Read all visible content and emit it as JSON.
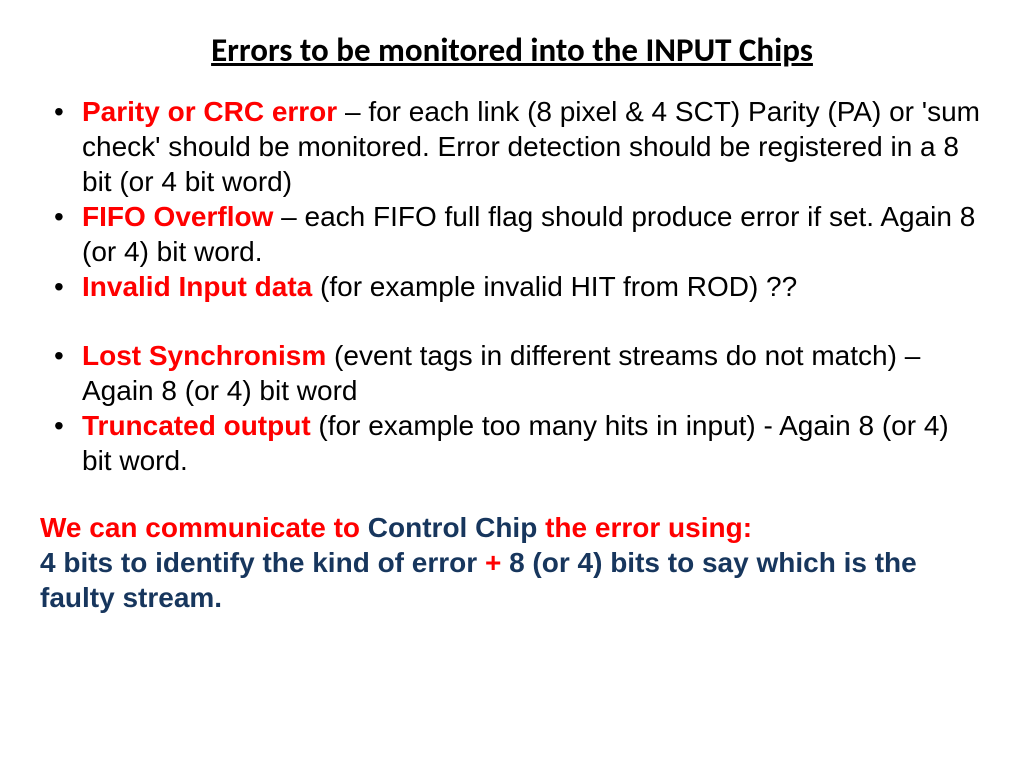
{
  "colors": {
    "background": "#ffffff",
    "title_text": "#000000",
    "body_text": "#000000",
    "term_text": "#ff0000",
    "bullet": "#000000",
    "footer_blue": "#17365d",
    "footer_red": "#ff0000"
  },
  "typography": {
    "title_font": "Calibri",
    "body_font": "Arial",
    "title_size_pt": 25,
    "body_size_pt": 21,
    "footer_size_pt": 21
  },
  "title": "Errors to be monitored into the INPUT Chips",
  "bullets": [
    {
      "term": "Parity or CRC error",
      "text": " – for each link (8 pixel & 4 SCT) Parity (PA) or 'sum check' should be monitored. Error detection should be registered in a 8 bit (or 4 bit word)"
    },
    {
      "term": "FIFO Overflow",
      "text": " – each FIFO full flag should produce error if set. Again 8 (or 4) bit word."
    },
    {
      "term": "Invalid Input data",
      "text": " (for example invalid HIT from ROD)  ??"
    }
  ],
  "bullets2": [
    {
      "term": "Lost Synchronism",
      "text": " (event tags in different streams do not match) –  Again 8 (or 4) bit word"
    },
    {
      "term": "Truncated output",
      "text": " (for example too many hits in input) - Again 8 (or 4) bit word."
    }
  ],
  "footer": {
    "l1_red1": "We can communicate to ",
    "l1_blue": "Control Chip",
    "l1_red2": " the error using:",
    "l2_blue1": "4 bits to identify the kind of error ",
    "l2_plus": "+",
    "l2_blue2": " 8 (or 4) bits to say which is the faulty stream."
  }
}
